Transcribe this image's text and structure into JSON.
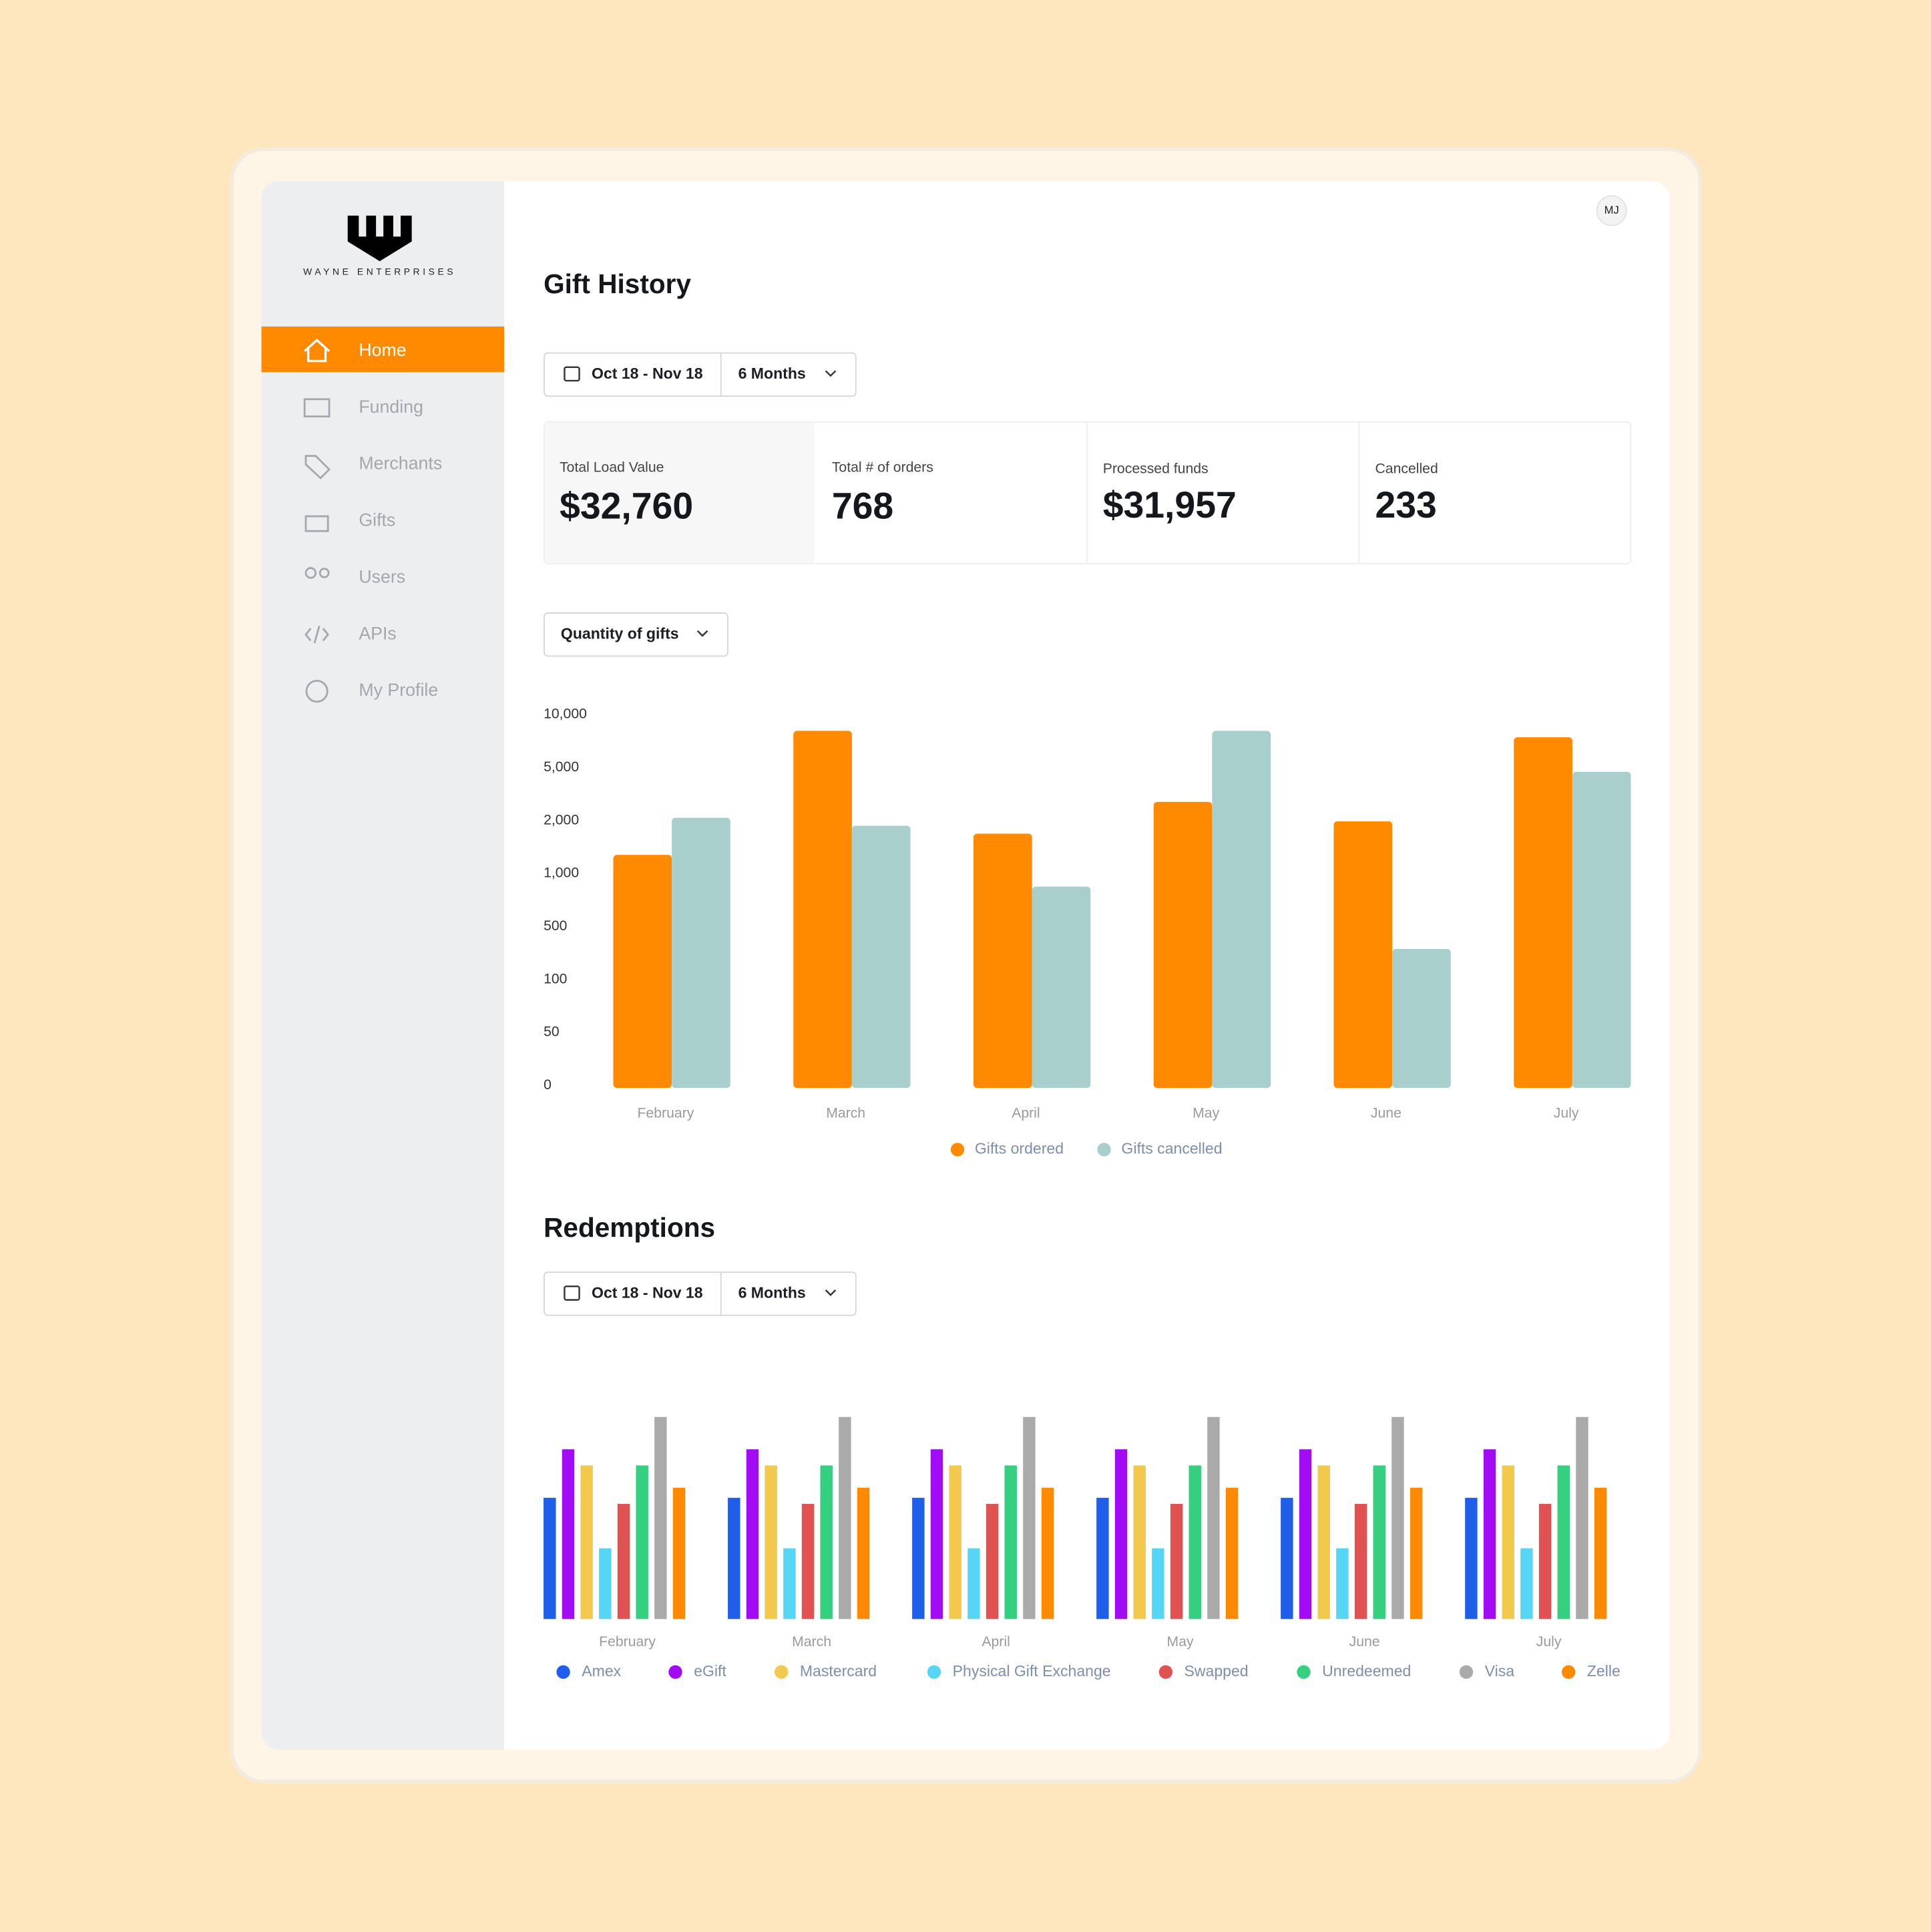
{
  "sidebar": {
    "logo_text": "WAYNE ENTERPRISES",
    "nav": [
      "Home",
      "Funding",
      "Merchants",
      "Gifts",
      "Users",
      "APIs",
      "My Profile"
    ]
  },
  "header": {
    "avatar": "MJ"
  },
  "gift_history": {
    "title": "Gift History",
    "date_range": "Oct 18 - Nov 18",
    "period": "6 Months",
    "stats": [
      {
        "label": "Total Load Value",
        "value": "$32,760"
      },
      {
        "label": "Total # of orders",
        "value": "768"
      },
      {
        "label": "Processed funds",
        "value": "$31,957"
      },
      {
        "label": "Cancelled",
        "value": "233"
      }
    ],
    "metric_select": "Quantity of gifts"
  },
  "redemptions": {
    "title": "Redemptions",
    "date_range": "Oct 18 - Nov 18",
    "period": "6 Months"
  },
  "chart_data": [
    {
      "type": "bar",
      "categories": [
        "February",
        "March",
        "April",
        "May",
        "June",
        "July"
      ],
      "series": [
        {
          "name": "Gifts ordered",
          "color": "#ff8a00",
          "values": [
            1400,
            8700,
            1800,
            3200,
            2100,
            8100
          ]
        },
        {
          "name": "Gifts cancelled",
          "color": "#a8cfcb",
          "values": [
            2300,
            1950,
            900,
            8700,
            350,
            4900
          ]
        }
      ],
      "ylim": [
        0,
        10000
      ],
      "yticks": [
        0,
        50,
        100,
        500,
        {
          "value": 1000,
          "label": "1,000"
        },
        {
          "value": 2000,
          "label": "2,000"
        },
        {
          "value": 5000,
          "label": "5,000"
        },
        {
          "value": 10000,
          "label": "10,000"
        }
      ],
      "grid": false,
      "legend": "bottom"
    },
    {
      "type": "bar",
      "categories": [
        "February",
        "March",
        "April",
        "May",
        "June",
        "July"
      ],
      "series": [
        {
          "name": "Amex",
          "color": "#1f5ee8",
          "values": [
            60,
            60,
            60,
            60,
            60,
            60
          ]
        },
        {
          "name": "eGift",
          "color": "#a10cf5",
          "values": [
            84,
            84,
            84,
            84,
            84,
            84
          ]
        },
        {
          "name": "Mastercard",
          "color": "#f2c94c",
          "values": [
            76,
            76,
            76,
            76,
            76,
            76
          ]
        },
        {
          "name": "Physical Gift Exchange",
          "color": "#55d6f5",
          "values": [
            35,
            35,
            35,
            35,
            35,
            35
          ]
        },
        {
          "name": "Swapped",
          "color": "#e05252",
          "values": [
            57,
            57,
            57,
            57,
            57,
            57
          ]
        },
        {
          "name": "Unredeemed",
          "color": "#34cf7f",
          "values": [
            76,
            76,
            76,
            76,
            76,
            76
          ]
        },
        {
          "name": "Visa",
          "color": "#aaaaaa",
          "values": [
            100,
            100,
            100,
            100,
            100,
            100
          ]
        },
        {
          "name": "Zelle",
          "color": "#ff8a00",
          "values": [
            65,
            65,
            65,
            65,
            65,
            65
          ]
        }
      ],
      "ylim": [
        0,
        100
      ],
      "grid": false,
      "legend": "bottom"
    }
  ]
}
